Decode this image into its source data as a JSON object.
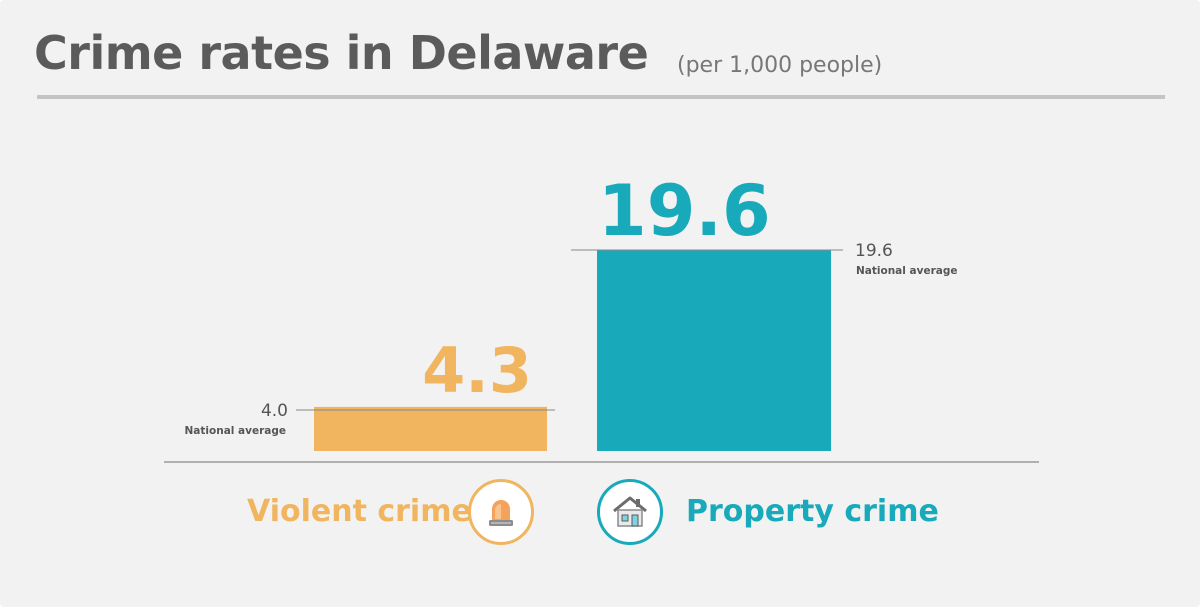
{
  "title": "Crime rates in Delaware",
  "subtitle": "(per 1,000 people)",
  "colors": {
    "violent": "#f0b55e",
    "property": "#18aabb",
    "title": "#5b5b5b",
    "baseline": "#9a9a9a",
    "background": "#f2f2f2"
  },
  "categories": [
    {
      "label": "Violent crime",
      "icon": "siren-icon"
    },
    {
      "label": "Property crime",
      "icon": "house-icon"
    }
  ],
  "chart_data": {
    "type": "bar",
    "title": "Crime rates in Delaware",
    "subtitle": "(per 1,000 people)",
    "categories": [
      "Violent crime",
      "Property crime"
    ],
    "values": [
      4.3,
      19.6
    ],
    "value_labels": [
      "4.3",
      "19.6"
    ],
    "reference": {
      "label": "National average",
      "values": [
        4.0,
        19.6
      ],
      "value_labels": [
        "4.0",
        "19.6"
      ]
    },
    "ylim": [
      0,
      19.6
    ],
    "grid": false,
    "legend": "none",
    "xlabel": "",
    "ylabel": ""
  }
}
